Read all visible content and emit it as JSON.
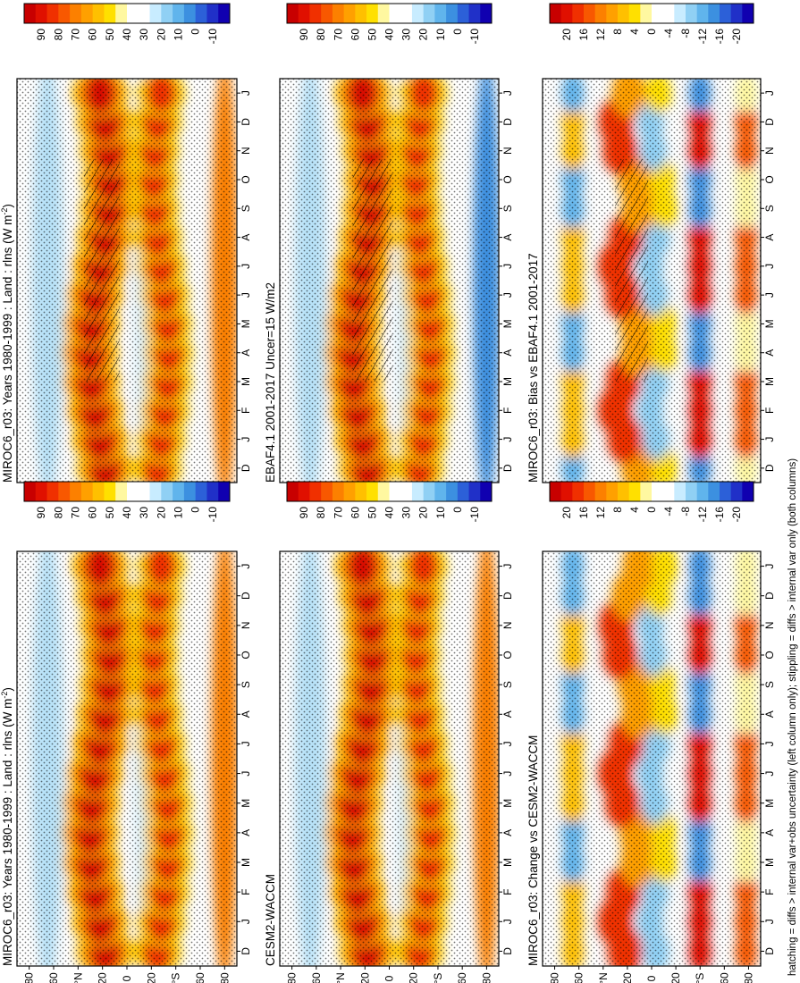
{
  "chart_data": {
    "type": "heatmap",
    "orientation": "rotated 90 degrees counter-clockwise",
    "footnote": "hatching = diffs > internal var+obs uncertainty (left column only); stippling = diffs > internal var only (both columns)",
    "month_labels": [
      "D",
      "J",
      "F",
      "M",
      "A",
      "M",
      "J",
      "J",
      "A",
      "S",
      "O",
      "N",
      "D",
      "J"
    ],
    "lat_labels": [
      "80",
      "60",
      "°N",
      "20",
      "0",
      "20",
      "°S",
      "60",
      "80"
    ],
    "lat_values": [
      80,
      60,
      40,
      20,
      0,
      -20,
      -40,
      -60,
      -80
    ],
    "abs_levels": [
      "90",
      "80",
      "70",
      "60",
      "50",
      "40",
      "30",
      "20",
      "10",
      "0",
      "-10"
    ],
    "diff_levels": [
      "20",
      "16",
      "12",
      "8",
      "4",
      "0",
      "-4",
      "-8",
      "-12",
      "-16",
      "-20"
    ],
    "abs_colors": [
      "#c80000",
      "#e01000",
      "#f03000",
      "#f85800",
      "#fc8000",
      "#ffa000",
      "#ffc000",
      "#ffe000",
      "#fff8a0",
      "#ffffff",
      "#ffffff",
      "#c8ecff",
      "#90d0f4",
      "#60b4ec",
      "#3c90e0",
      "#2c60d8",
      "#2030c8",
      "#1000b0"
    ],
    "diff_colors": [
      "#c80000",
      "#e01000",
      "#f03000",
      "#f85800",
      "#fc8000",
      "#ffa000",
      "#ffc000",
      "#ffe000",
      "#fff8a0",
      "#ffffff",
      "#ffffff",
      "#c8ecff",
      "#90d0f4",
      "#60b4ec",
      "#3c90e0",
      "#2c60d8",
      "#2030c8",
      "#1000b0"
    ],
    "panels": [
      {
        "id": "miroc6-1980-1999-left",
        "title": "MIROC6_r03: Years 1980-1999 : Land : rlns (W m",
        "title_sup": "-2",
        "title_end": ")",
        "kind": "abs",
        "hatch": "left",
        "stipple": true
      },
      {
        "id": "miroc6-1980-1999-right",
        "title": "MIROC6_r03: Years 1980-1999 : Land : rlns (W m",
        "title_sup": "-2",
        "title_end": ")",
        "kind": "abs",
        "hatch": "none",
        "stipple": true
      },
      {
        "id": "ebaf41",
        "title": "EBAF4.1 2001-2017 Uncer=15 W/m2",
        "title_sup": "",
        "title_end": "",
        "kind": "abs",
        "hatch": "mid",
        "stipple": true
      },
      {
        "id": "cesm2-waccm",
        "title": "CESM2-WACCM",
        "title_sup": "",
        "title_end": "",
        "kind": "abs",
        "hatch": "none",
        "stipple": true
      },
      {
        "id": "bias-vs-ebaf",
        "title": "MIROC6_r03: Bias vs EBAF4.1 2001-2017",
        "title_sup": "",
        "title_end": "",
        "kind": "diff",
        "hatch": "bias",
        "stipple": true
      },
      {
        "id": "change-vs-cesm2",
        "title": "MIROC6_r03: Change vs CESM2-WACCM",
        "title_sup": "",
        "title_end": "",
        "kind": "diff",
        "hatch": "none",
        "stipple": true
      }
    ]
  }
}
